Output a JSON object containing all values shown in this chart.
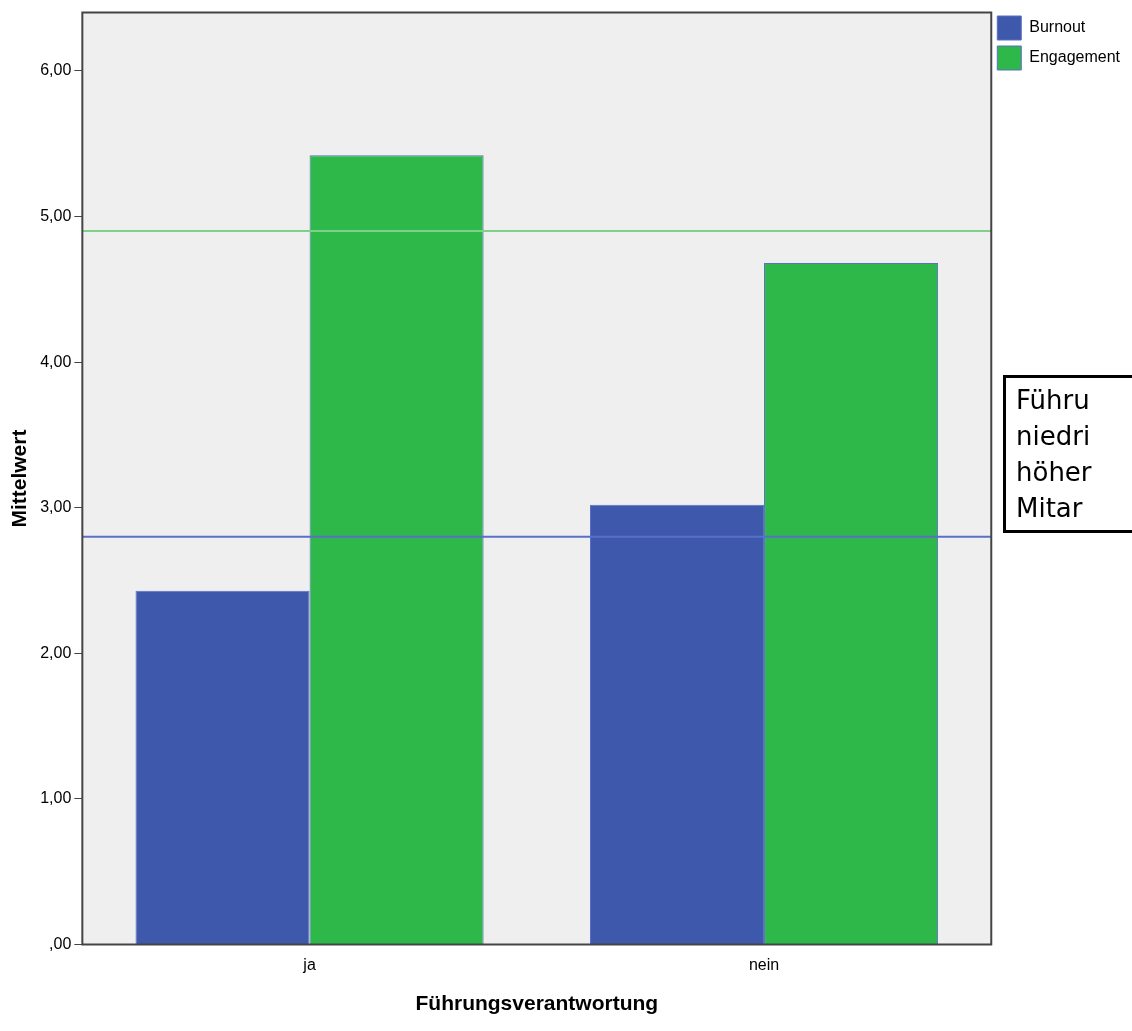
{
  "chart_data": {
    "type": "bar",
    "xlabel": "Führungsverantwortung",
    "ylabel": "Mittelwert",
    "categories": [
      "ja",
      "nein"
    ],
    "series": [
      {
        "name": "Burnout",
        "color": "#3e58ab",
        "values": [
          2.43,
          3.02
        ]
      },
      {
        "name": "Engagement",
        "color": "#2eb84a",
        "values": [
          5.42,
          4.68
        ]
      }
    ],
    "ylim": [
      0,
      6.4
    ],
    "yticks": [
      {
        "value": 0,
        "label": ",00"
      },
      {
        "value": 1,
        "label": "1,00"
      },
      {
        "value": 2,
        "label": "2,00"
      },
      {
        "value": 3,
        "label": "3,00"
      },
      {
        "value": 4,
        "label": "4,00"
      },
      {
        "value": 5,
        "label": "5,00"
      },
      {
        "value": 6,
        "label": "6,00"
      }
    ],
    "ref_lines": [
      {
        "axis": "y",
        "value": 4.9,
        "color": "#7fd08a"
      },
      {
        "axis": "y",
        "value": 2.8,
        "color": "#5a6fc8"
      }
    ],
    "annotations": [
      "Führu\nniedri\nhöher\nMitar"
    ],
    "legend": "top right",
    "grid": false
  }
}
